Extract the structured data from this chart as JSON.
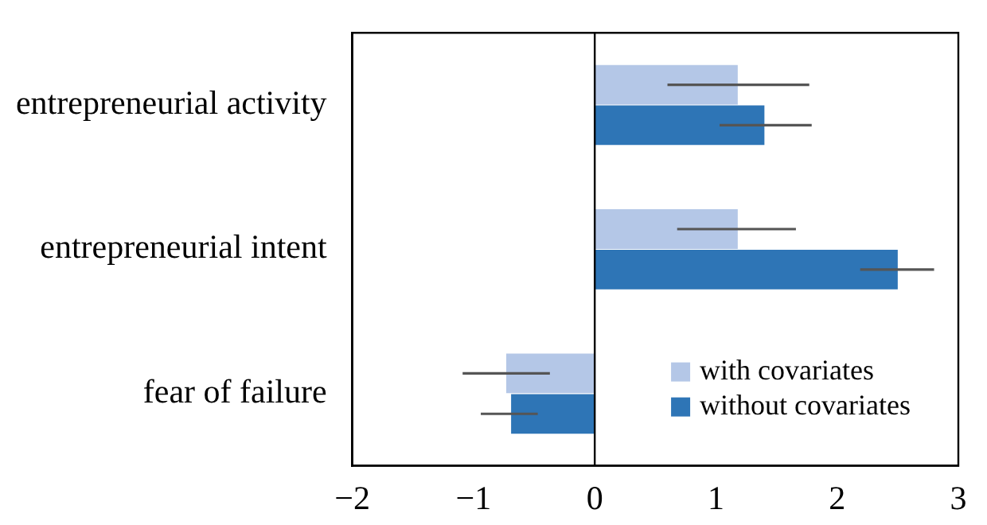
{
  "chart_data": {
    "type": "bar",
    "orientation": "horizontal",
    "categories": [
      "entrepreneurial activity",
      "entrepreneurial intent",
      "fear of failure"
    ],
    "series": [
      {
        "name": "with covariates",
        "color": "#b4c7e7",
        "values": [
          1.18,
          1.18,
          -0.73
        ],
        "errors": [
          [
            0.6,
            1.77
          ],
          [
            0.68,
            1.66
          ],
          [
            -1.09,
            -0.37
          ]
        ]
      },
      {
        "name": "without covariates",
        "color": "#2e75b6",
        "values": [
          1.4,
          2.5,
          -0.69
        ],
        "errors": [
          [
            1.03,
            1.79
          ],
          [
            2.19,
            2.8
          ],
          [
            -0.94,
            -0.47
          ]
        ]
      }
    ],
    "xlim": [
      -2,
      3
    ],
    "xticks": [
      -2,
      -1,
      0,
      1,
      2,
      3
    ],
    "ref_lines": [
      {
        "axis": "x",
        "value": 0,
        "color": "#000000"
      }
    ],
    "grid": false,
    "legend": "bottom right"
  }
}
